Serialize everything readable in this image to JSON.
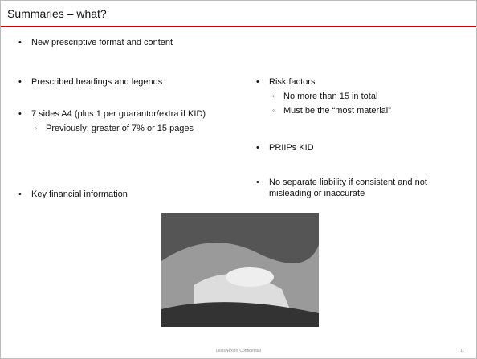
{
  "header": {
    "title": "Summaries – what?"
  },
  "left": [
    {
      "text": "New prescriptive format and content",
      "subs": []
    },
    {
      "text": "Prescribed headings and legends",
      "subs": []
    },
    {
      "text": "7 sides A4 (plus 1 per guarantor/extra if KID)",
      "subs": [
        "Previously:  greater of 7% or 15 pages"
      ]
    },
    {
      "text": "Key financial information",
      "subs": []
    }
  ],
  "right": [
    {
      "text": "Risk factors",
      "subs": [
        "No more than 15 in total",
        "Must be the “most material”"
      ]
    },
    {
      "text": "PRIIPs KID",
      "subs": []
    },
    {
      "text": "No separate liability if consistent and not misleading or inaccurate",
      "subs": []
    }
  ],
  "footer": {
    "confidential": "LexisNexis® Confidential",
    "page_number": "11"
  }
}
